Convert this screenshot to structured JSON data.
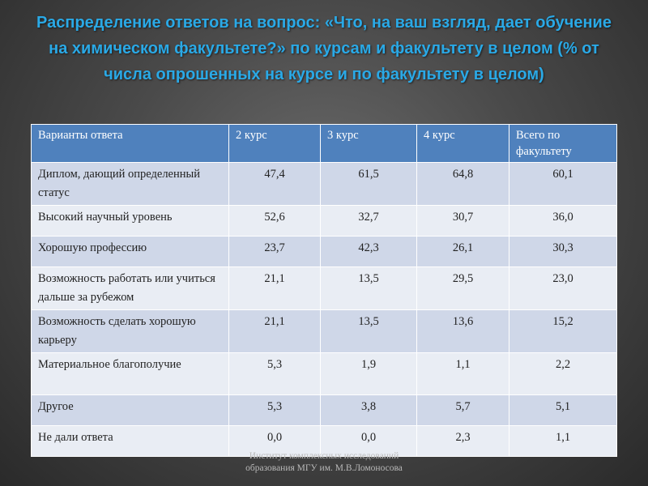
{
  "title": "Распределение ответов на вопрос: «Что, на ваш взгляд, дает обучение на химическом факультете?» по курсам и факультету в целом (% от числа опрошенных на курсе и по факультету в целом)",
  "table": {
    "headers": [
      "Варианты ответа",
      "2 курс",
      "3 курс",
      "4 курс",
      "Всего по факультету"
    ],
    "rows": [
      [
        "Диплом, дающий определенный статус",
        "47,4",
        "61,5",
        "64,8",
        "60,1"
      ],
      [
        "Высокий научный уровень",
        "52,6",
        "32,7",
        "30,7",
        "36,0"
      ],
      [
        "Хорошую профессию",
        "23,7",
        "42,3",
        "26,1",
        "30,3"
      ],
      [
        "Возможность работать или учиться дальше за рубежом",
        "21,1",
        "13,5",
        "29,5",
        "23,0"
      ],
      [
        "Возможность сделать хорошую карьеру",
        "21,1",
        "13,5",
        "13,6",
        "15,2"
      ],
      [
        "Материальное благополучие",
        "5,3",
        "1,9",
        "1,1",
        "2,2"
      ],
      [
        "Другое",
        "5,3",
        "3,8",
        "5,7",
        "5,1"
      ],
      [
        "Не дали ответа",
        "0,0",
        "0,0",
        "2,3",
        "1,1"
      ]
    ]
  },
  "footer": {
    "line1": "Институт комплексных исследований",
    "line2": "образования МГУ им. М.В.Ломоносова"
  }
}
